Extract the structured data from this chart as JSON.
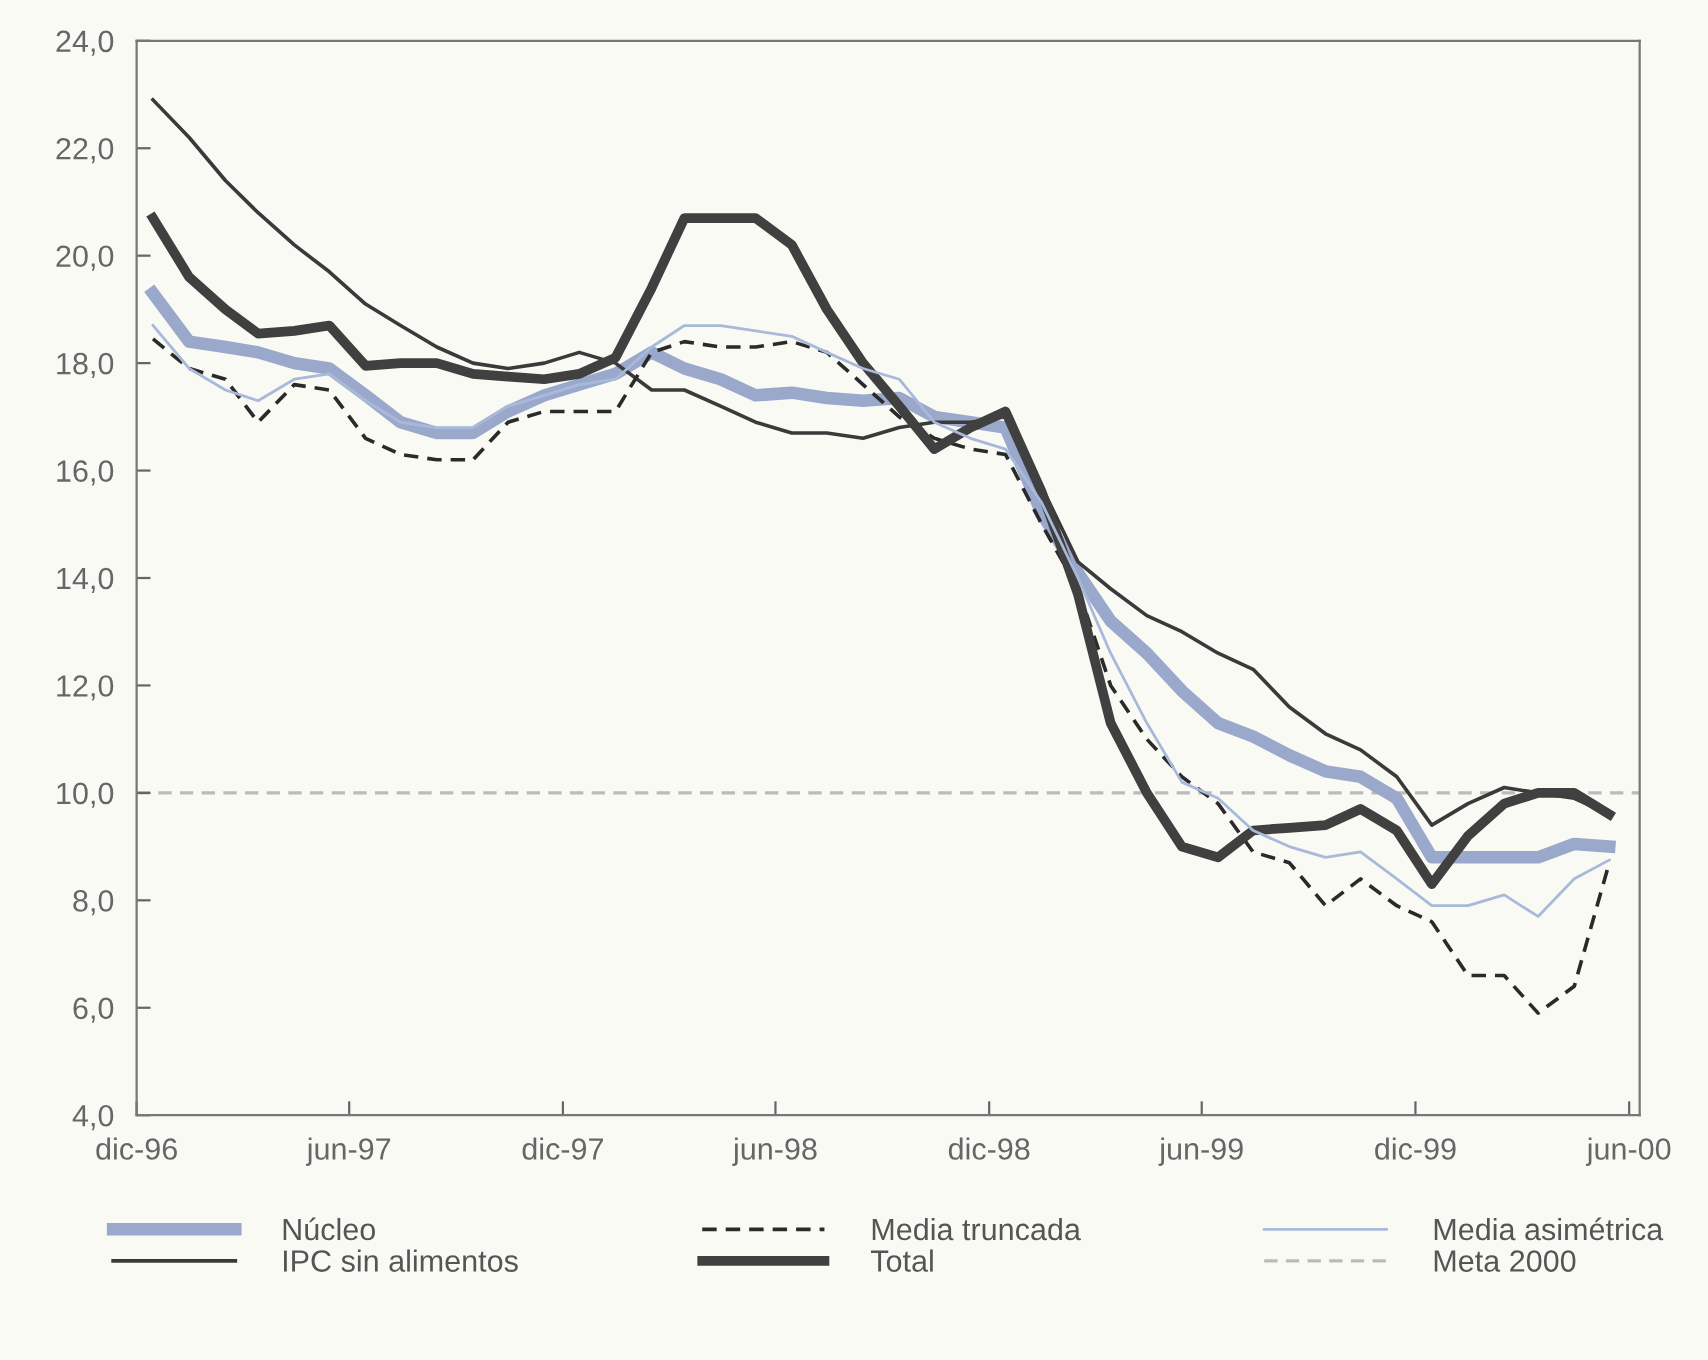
{
  "chart_data": {
    "type": "line",
    "x": [
      "1996-12-15",
      "1997-01-15",
      "1997-02-15",
      "1997-03-15",
      "1997-04-15",
      "1997-05-15",
      "1997-06-15",
      "1997-07-15",
      "1997-08-15",
      "1997-09-15",
      "1997-10-15",
      "1997-11-15",
      "1997-12-15",
      "1998-01-15",
      "1998-02-15",
      "1998-03-15",
      "1998-04-15",
      "1998-05-15",
      "1998-06-15",
      "1998-07-15",
      "1998-08-15",
      "1998-09-15",
      "1998-10-15",
      "1998-11-15",
      "1998-12-15",
      "1999-01-15",
      "1999-02-15",
      "1999-03-15",
      "1999-04-15",
      "1999-05-15",
      "1999-06-15",
      "1999-07-15",
      "1999-08-15",
      "1999-09-15",
      "1999-10-15",
      "1999-11-15",
      "1999-12-15",
      "2000-01-15",
      "2000-02-15",
      "2000-03-15",
      "2000-04-15",
      "2000-05-15"
    ],
    "series": [
      {
        "name": "Núcleo",
        "color": "#9aa8cc",
        "line_style": "solid",
        "values": [
          19.3,
          18.4,
          18.3,
          18.2,
          18.0,
          17.9,
          17.4,
          16.9,
          16.7,
          16.7,
          17.1,
          17.4,
          17.6,
          17.8,
          18.2,
          17.9,
          17.7,
          17.4,
          17.45,
          17.35,
          17.3,
          17.35,
          17.0,
          16.9,
          16.8,
          15.2,
          14.1,
          13.2,
          12.6,
          11.9,
          11.3,
          11.05,
          10.7,
          10.4,
          10.3,
          9.9,
          8.8,
          8.8,
          8.8,
          8.8,
          9.05,
          9.0
        ]
      },
      {
        "name": "IPC sin alimentos",
        "color": "#3a3a3a",
        "line_style": "solid",
        "values": [
          22.9,
          22.2,
          21.4,
          20.8,
          20.2,
          19.7,
          19.1,
          18.7,
          18.3,
          18.0,
          17.9,
          18.0,
          18.2,
          18.0,
          17.5,
          17.5,
          17.2,
          16.9,
          16.7,
          16.7,
          16.6,
          16.8,
          16.9,
          16.9,
          17.0,
          15.7,
          14.3,
          13.8,
          13.3,
          13.0,
          12.6,
          12.3,
          11.6,
          11.1,
          10.8,
          10.3,
          9.4,
          9.8,
          10.1,
          10.0,
          9.9,
          9.6
        ]
      },
      {
        "name": "Media truncada",
        "color": "#2a2a2a",
        "line_style": "dashed",
        "values": [
          18.45,
          17.9,
          17.7,
          16.9,
          17.6,
          17.5,
          16.6,
          16.3,
          16.2,
          16.2,
          16.9,
          17.1,
          17.1,
          17.1,
          18.2,
          18.4,
          18.3,
          18.3,
          18.4,
          18.2,
          17.6,
          17.0,
          16.6,
          16.4,
          16.3,
          15.0,
          13.8,
          12.0,
          11.0,
          10.3,
          9.8,
          8.9,
          8.7,
          7.9,
          8.4,
          7.9,
          7.6,
          6.6,
          6.6,
          5.9,
          6.4,
          8.7
        ]
      },
      {
        "name": "Total",
        "color": "#404040",
        "line_style": "solid",
        "values": [
          20.7,
          19.6,
          19.0,
          18.55,
          18.6,
          18.7,
          17.95,
          18.0,
          18.0,
          17.8,
          17.75,
          17.7,
          17.8,
          18.1,
          19.4,
          20.7,
          20.7,
          20.7,
          20.2,
          19.0,
          18.0,
          17.2,
          16.4,
          16.8,
          17.1,
          15.6,
          13.7,
          11.3,
          10.0,
          9.0,
          8.8,
          9.3,
          9.35,
          9.4,
          9.7,
          9.3,
          8.3,
          9.2,
          9.8,
          10.0,
          10.0,
          9.6
        ]
      },
      {
        "name": "Media asimétrica",
        "color": "#a9b9d9",
        "line_style": "solid",
        "values": [
          18.7,
          17.9,
          17.5,
          17.3,
          17.7,
          17.8,
          17.3,
          16.9,
          16.8,
          16.8,
          17.2,
          17.4,
          17.6,
          17.7,
          18.3,
          18.7,
          18.7,
          18.6,
          18.5,
          18.2,
          17.9,
          17.7,
          16.9,
          16.6,
          16.4,
          15.4,
          14.0,
          12.6,
          11.3,
          10.2,
          9.9,
          9.3,
          9.0,
          8.8,
          8.9,
          8.4,
          7.9,
          7.9,
          8.1,
          7.7,
          8.4,
          8.75
        ]
      }
    ],
    "ref_lines": [
      {
        "axis": "y",
        "value": 10,
        "label": "Meta 2000",
        "color": "#bbbbbb",
        "line_style": "dashed"
      }
    ],
    "xlim": [
      "1996-12-01",
      "2000-06-10"
    ],
    "xticks": [
      {
        "value": "1996-12-01",
        "label": "dic-96"
      },
      {
        "value": "1997-06-01",
        "label": "jun-97"
      },
      {
        "value": "1997-12-01",
        "label": "dic-97"
      },
      {
        "value": "1998-06-01",
        "label": "jun-98"
      },
      {
        "value": "1998-12-01",
        "label": "dic-98"
      },
      {
        "value": "1999-06-01",
        "label": "jun-99"
      },
      {
        "value": "1999-12-01",
        "label": "dic-99"
      },
      {
        "value": "2000-06-01",
        "label": "jun-00"
      }
    ],
    "ylim": [
      4,
      24
    ],
    "yticks": [
      {
        "value": 4,
        "label": "4,0"
      },
      {
        "value": 6,
        "label": "6,0"
      },
      {
        "value": 8,
        "label": "8,0"
      },
      {
        "value": 10,
        "label": "10,0"
      },
      {
        "value": 12,
        "label": "12,0"
      },
      {
        "value": 14,
        "label": "14,0"
      },
      {
        "value": 16,
        "label": "16,0"
      },
      {
        "value": 18,
        "label": "18,0"
      },
      {
        "value": 20,
        "label": "20,0"
      },
      {
        "value": 22,
        "label": "22,0"
      },
      {
        "value": 24,
        "label": "24,0"
      }
    ],
    "grid": false,
    "legend": "bottom",
    "marker": "none"
  }
}
